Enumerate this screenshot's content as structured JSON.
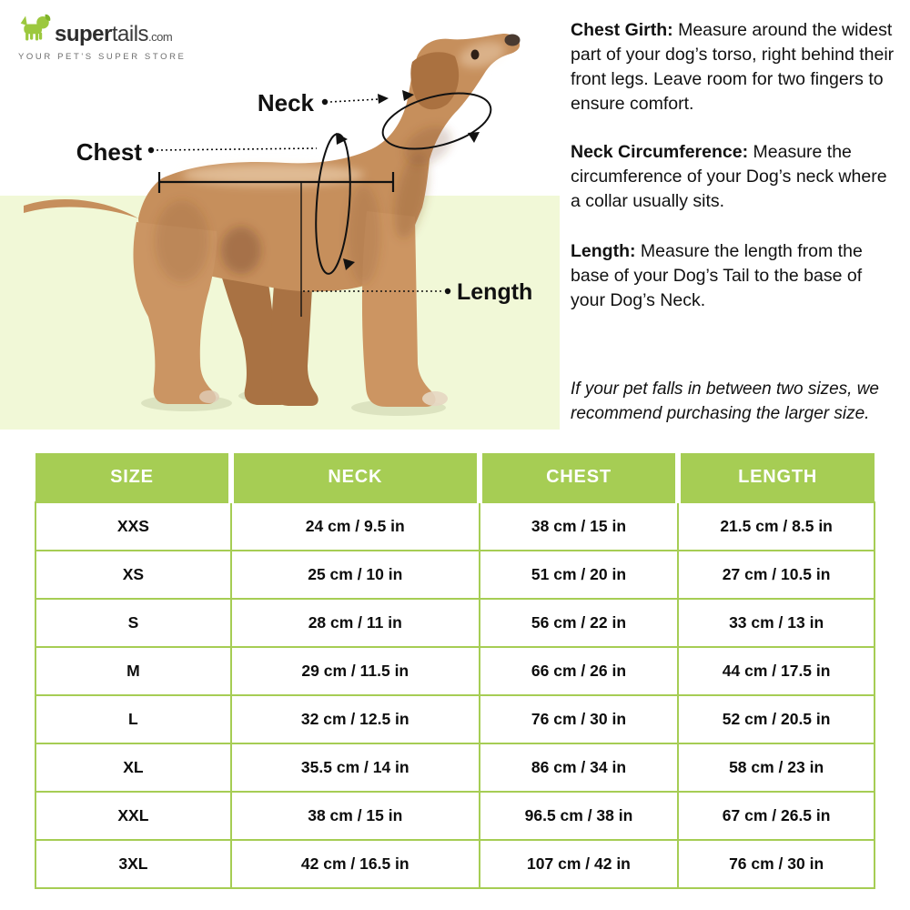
{
  "logo": {
    "brand_bold": "super",
    "brand_light": "tails",
    "brand_suffix": ".com",
    "tagline": "YOUR PET'S SUPER STORE"
  },
  "diagram": {
    "labels": {
      "neck": "Neck",
      "chest": "Chest",
      "length": "Length"
    }
  },
  "instructions": [
    {
      "title": "Chest Girth:",
      "body": " Measure around the widest part of your dog’s torso, right behind their front legs. Leave room for two fingers to ensure comfort."
    },
    {
      "title": "Neck Circumference:",
      "body": " Measure the circumference of your Dog’s neck where a collar usually sits."
    },
    {
      "title": "Length:",
      "body": " Measure the length from the base of your Dog’s Tail to the base of your Dog’s Neck."
    }
  ],
  "note": "If your pet falls in between two sizes, we recommend purchasing the larger size.",
  "size_table": {
    "headers": [
      "SIZE",
      "NECK",
      "CHEST",
      "LENGTH"
    ],
    "rows": [
      [
        "XXS",
        "24 cm / 9.5 in",
        "38 cm / 15 in",
        "21.5 cm / 8.5 in"
      ],
      [
        "XS",
        "25 cm / 10 in",
        "51 cm / 20 in",
        "27 cm / 10.5 in"
      ],
      [
        "S",
        "28 cm / 11 in",
        "56 cm / 22 in",
        "33 cm / 13 in"
      ],
      [
        "M",
        "29 cm / 11.5 in",
        "66 cm / 26 in",
        "44 cm / 17.5 in"
      ],
      [
        "L",
        "32 cm / 12.5 in",
        "76 cm / 30 in",
        "52 cm / 20.5 in"
      ],
      [
        "XL",
        "35.5 cm / 14 in",
        "86 cm / 34 in",
        "58 cm / 23 in"
      ],
      [
        "XXL",
        "38 cm / 15 in",
        "96.5 cm / 38 in",
        "67 cm / 26.5 in"
      ],
      [
        "3XL",
        "42 cm / 16.5 in",
        "107 cm / 42 in",
        "76 cm / 30 in"
      ]
    ]
  },
  "colors": {
    "header_green": "#a6cd54",
    "panel_green": "#f1f8d7",
    "logo_green": "#9cc83e",
    "coat_tan": "#c68f5c",
    "text_dark": "#111111"
  }
}
